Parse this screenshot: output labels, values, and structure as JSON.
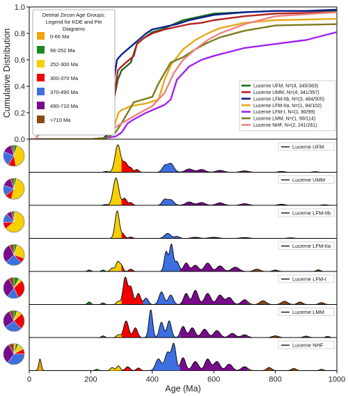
{
  "chart_data": [
    {
      "type": "line",
      "xlabel": "Age (Ma)",
      "ylabel": "Cumulative Distribution",
      "xlim": [
        0,
        1000
      ],
      "ylim": [
        0.0,
        1.0
      ],
      "x_ticks": [
        "0",
        "200",
        "400",
        "600",
        "800",
        "1000"
      ],
      "y_ticks": [
        "0.0",
        "0.2",
        "0.4",
        "0.6",
        "0.8",
        "1.0"
      ],
      "age_groups_legend": {
        "title": "Detrital Zircon Age Groups: Legend for KDE and Pie Diagrams",
        "title_lines": [
          "Detrital Zircon Age Groups:",
          "Legend for KDE and Pie",
          "Diagrams"
        ],
        "groups": [
          {
            "label": "0-66 Ma",
            "color": "#F0A30A"
          },
          {
            "label": "66-252 Ma",
            "color": "#1E8A1E"
          },
          {
            "label": "252-300 Ma",
            "color": "#F7D000"
          },
          {
            "label": "300-370 Ma",
            "color": "#F20000"
          },
          {
            "label": "370-490 Ma",
            "color": "#3E6FE0"
          },
          {
            "label": "490-710 Ma",
            "color": "#7A0A8C"
          },
          {
            "label": ">710 Ma",
            "color": "#8B4A14"
          }
        ]
      },
      "legend_position": "lower right",
      "series": [
        {
          "name": "Lucerne UFM, N=(4, 345/363)",
          "color": "#1C6B1C",
          "x": [
            0,
            240,
            262,
            275,
            288,
            300,
            315,
            330,
            350,
            370,
            400,
            430,
            460,
            500,
            600,
            700,
            800,
            900,
            1000
          ],
          "y": [
            0,
            0,
            0.05,
            0.3,
            0.45,
            0.52,
            0.55,
            0.58,
            0.72,
            0.76,
            0.81,
            0.83,
            0.86,
            0.9,
            0.95,
            0.96,
            0.97,
            0.97,
            0.97
          ]
        },
        {
          "name": "Lucerne UMM, N=(4, 341/357)",
          "color": "#B22222",
          "x": [
            0,
            240,
            262,
            275,
            288,
            300,
            315,
            340,
            350,
            370,
            400,
            440,
            480,
            520,
            560,
            600,
            700,
            800,
            1000
          ],
          "y": [
            0,
            0,
            0.05,
            0.3,
            0.52,
            0.55,
            0.58,
            0.63,
            0.72,
            0.76,
            0.8,
            0.83,
            0.85,
            0.87,
            0.88,
            0.9,
            0.93,
            0.95,
            0.96
          ]
        },
        {
          "name": "Lucerne LFM-IIb, N=(3, 484/505)",
          "color": "#0A1E8C",
          "x": [
            0,
            240,
            258,
            270,
            285,
            300,
            320,
            340,
            360,
            380,
            400,
            440,
            480,
            520,
            600,
            700,
            800,
            900,
            1000
          ],
          "y": [
            0,
            0,
            0.05,
            0.35,
            0.6,
            0.64,
            0.68,
            0.72,
            0.76,
            0.8,
            0.83,
            0.85,
            0.87,
            0.9,
            0.94,
            0.96,
            0.97,
            0.97,
            0.98
          ]
        },
        {
          "name": "Lucerne LFM-IIa, N=(1, 94/102)",
          "color": "#E6A817",
          "x": [
            0,
            200,
            250,
            270,
            290,
            300,
            330,
            380,
            420,
            440,
            460,
            480,
            500,
            540,
            580,
            620,
            700,
            800,
            1000
          ],
          "y": [
            0,
            0,
            0.01,
            0.05,
            0.2,
            0.22,
            0.25,
            0.27,
            0.3,
            0.45,
            0.56,
            0.62,
            0.68,
            0.75,
            0.8,
            0.84,
            0.88,
            0.9,
            0.91
          ]
        },
        {
          "name": "Lucerne LFM-I, N=(1, 80/99)",
          "color": "#A020F0",
          "x": [
            0,
            200,
            250,
            280,
            300,
            320,
            340,
            380,
            440,
            460,
            480,
            520,
            560,
            600,
            650,
            700,
            800,
            900,
            1000
          ],
          "y": [
            0,
            0,
            0.01,
            0.02,
            0.05,
            0.12,
            0.15,
            0.2,
            0.26,
            0.3,
            0.45,
            0.55,
            0.6,
            0.63,
            0.66,
            0.69,
            0.72,
            0.75,
            0.81
          ]
        },
        {
          "name": "Lucerne LMM, N=(1, 99/114)",
          "color": "#7A7A1A",
          "x": [
            0,
            200,
            250,
            280,
            300,
            320,
            340,
            370,
            400,
            420,
            440,
            460,
            480,
            500,
            540,
            580,
            620,
            700,
            800,
            1000
          ],
          "y": [
            0,
            0,
            0.01,
            0.05,
            0.12,
            0.2,
            0.28,
            0.3,
            0.32,
            0.42,
            0.5,
            0.58,
            0.6,
            0.62,
            0.68,
            0.73,
            0.77,
            0.82,
            0.86,
            0.87
          ]
        },
        {
          "name": "Lucerne NHF, N=(2, 241/261)",
          "color": "#F08080",
          "x": [
            0,
            20,
            25,
            35,
            40,
            200,
            250,
            280,
            300,
            330,
            360,
            400,
            440,
            470,
            500,
            540,
            580,
            620,
            700,
            800,
            1000
          ],
          "y": [
            0,
            0,
            0.02,
            0.04,
            0.04,
            0.04,
            0.06,
            0.09,
            0.12,
            0.16,
            0.2,
            0.25,
            0.35,
            0.5,
            0.6,
            0.68,
            0.75,
            0.8,
            0.87,
            0.93,
            0.96
          ]
        }
      ]
    },
    {
      "type": "area",
      "description_panels": "Kernel density estimates per sample, coloured by age group",
      "xlim": [
        0,
        1000
      ],
      "panels": [
        {
          "name": "Lucerne UFM",
          "pie": [
            0.0,
            0.05,
            0.42,
            0.12,
            0.22,
            0.15,
            0.04
          ],
          "peaks": [
            [
              250,
              0.03,
              6
            ],
            [
              288,
              1.0,
              9
            ],
            [
              312,
              0.35,
              8
            ],
            [
              330,
              0.15,
              6
            ],
            [
              350,
              0.1,
              6
            ],
            [
              440,
              0.22,
              8
            ],
            [
              460,
              0.32,
              10
            ],
            [
              520,
              0.12,
              12
            ],
            [
              560,
              0.1,
              12
            ],
            [
              620,
              0.07,
              12
            ],
            [
              700,
              0.05,
              12
            ],
            [
              820,
              0.03,
              10
            ],
            [
              930,
              0.02,
              8
            ]
          ]
        },
        {
          "name": "Lucerne UMM",
          "pie": [
            0.0,
            0.04,
            0.5,
            0.1,
            0.16,
            0.15,
            0.05
          ],
          "peaks": [
            [
              248,
              0.03,
              6
            ],
            [
              282,
              1.0,
              9
            ],
            [
              310,
              0.25,
              7
            ],
            [
              330,
              0.1,
              6
            ],
            [
              440,
              0.2,
              8
            ],
            [
              460,
              0.2,
              10
            ],
            [
              520,
              0.12,
              12
            ],
            [
              560,
              0.1,
              12
            ],
            [
              620,
              0.09,
              12
            ],
            [
              700,
              0.06,
              12
            ],
            [
              820,
              0.04,
              10
            ],
            [
              960,
              0.02,
              8
            ]
          ]
        },
        {
          "name": "Lucerne LFM-IIb",
          "pie": [
            0.0,
            0.02,
            0.62,
            0.1,
            0.14,
            0.08,
            0.04
          ],
          "peaks": [
            [
              286,
              1.0,
              7
            ],
            [
              305,
              0.15,
              6
            ],
            [
              330,
              0.05,
              6
            ],
            [
              450,
              0.18,
              10
            ],
            [
              480,
              0.07,
              8
            ],
            [
              540,
              0.04,
              12
            ],
            [
              600,
              0.04,
              14
            ],
            [
              700,
              0.03,
              14
            ],
            [
              850,
              0.02,
              10
            ]
          ]
        },
        {
          "name": "Lucerne LFM-IIa",
          "pie": [
            0.0,
            0.05,
            0.25,
            0.08,
            0.25,
            0.3,
            0.07
          ],
          "peaks": [
            [
              195,
              0.05,
              5
            ],
            [
              240,
              0.05,
              5
            ],
            [
              270,
              0.12,
              6
            ],
            [
              288,
              0.35,
              6
            ],
            [
              300,
              0.2,
              5
            ],
            [
              330,
              0.08,
              6
            ],
            [
              445,
              0.7,
              6
            ],
            [
              462,
              0.95,
              6
            ],
            [
              480,
              0.35,
              7
            ],
            [
              510,
              0.3,
              8
            ],
            [
              540,
              0.22,
              10
            ],
            [
              580,
              0.3,
              10
            ],
            [
              620,
              0.2,
              10
            ],
            [
              670,
              0.15,
              12
            ],
            [
              740,
              0.08,
              10
            ],
            [
              800,
              0.05,
              8
            ],
            [
              940,
              0.06,
              6
            ]
          ]
        },
        {
          "name": "Lucerne LFM-I",
          "pie": [
            0.0,
            0.08,
            0.05,
            0.3,
            0.17,
            0.32,
            0.08
          ],
          "peaks": [
            [
              195,
              0.08,
              5
            ],
            [
              240,
              0.05,
              5
            ],
            [
              290,
              0.1,
              6
            ],
            [
              312,
              0.85,
              7
            ],
            [
              330,
              0.55,
              7
            ],
            [
              355,
              0.35,
              7
            ],
            [
              380,
              0.2,
              7
            ],
            [
              430,
              0.4,
              8
            ],
            [
              460,
              0.3,
              8
            ],
            [
              510,
              0.35,
              8
            ],
            [
              540,
              0.45,
              9
            ],
            [
              580,
              0.35,
              10
            ],
            [
              620,
              0.3,
              10
            ],
            [
              650,
              0.22,
              10
            ],
            [
              700,
              0.15,
              10
            ],
            [
              760,
              0.12,
              10
            ],
            [
              830,
              0.1,
              10
            ],
            [
              880,
              0.08,
              8
            ],
            [
              950,
              0.06,
              8
            ]
          ]
        },
        {
          "name": "Lucerne LMM",
          "pie": [
            0.0,
            0.05,
            0.08,
            0.25,
            0.27,
            0.28,
            0.07
          ],
          "peaks": [
            [
              240,
              0.06,
              5
            ],
            [
              290,
              0.1,
              6
            ],
            [
              315,
              0.6,
              8
            ],
            [
              345,
              0.35,
              7
            ],
            [
              395,
              1.0,
              6
            ],
            [
              430,
              0.55,
              7
            ],
            [
              455,
              0.6,
              7
            ],
            [
              500,
              0.4,
              8
            ],
            [
              530,
              0.35,
              9
            ],
            [
              570,
              0.3,
              10
            ],
            [
              610,
              0.25,
              10
            ],
            [
              660,
              0.15,
              10
            ],
            [
              700,
              0.1,
              10
            ],
            [
              800,
              0.06,
              10
            ],
            [
              900,
              0.05,
              8
            ],
            [
              970,
              0.04,
              6
            ]
          ]
        },
        {
          "name": "Lucerne NHF",
          "pie": [
            0.03,
            0.04,
            0.1,
            0.08,
            0.35,
            0.32,
            0.08
          ],
          "peaks": [
            [
              35,
              0.45,
              4
            ],
            [
              220,
              0.05,
              5
            ],
            [
              270,
              0.12,
              6
            ],
            [
              290,
              0.18,
              6
            ],
            [
              320,
              0.15,
              7
            ],
            [
              355,
              0.1,
              6
            ],
            [
              420,
              0.45,
              9
            ],
            [
              450,
              0.7,
              9
            ],
            [
              470,
              1.0,
              7
            ],
            [
              500,
              0.5,
              8
            ],
            [
              540,
              0.35,
              10
            ],
            [
              580,
              0.45,
              9
            ],
            [
              610,
              0.35,
              10
            ],
            [
              650,
              0.25,
              10
            ],
            [
              700,
              0.15,
              10
            ],
            [
              780,
              0.12,
              8
            ],
            [
              860,
              0.08,
              8
            ],
            [
              950,
              0.05,
              6
            ]
          ]
        }
      ]
    }
  ]
}
